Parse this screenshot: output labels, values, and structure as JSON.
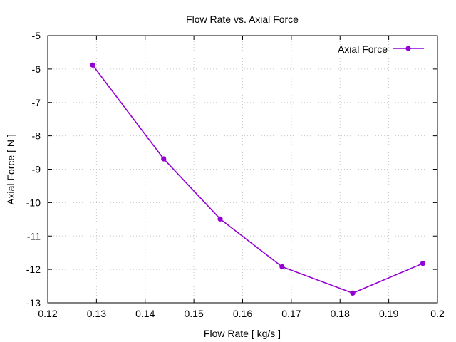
{
  "chart_data": {
    "type": "line",
    "title": "Flow Rate vs. Axial Force",
    "xlabel": "Flow Rate [ kg/s ]",
    "ylabel": "Axial Force [ N ]",
    "xlim": [
      0.12,
      0.2
    ],
    "ylim": [
      -13,
      -5
    ],
    "xticks": [
      "0.12",
      "0.13",
      "0.14",
      "0.15",
      "0.16",
      "0.17",
      "0.18",
      "0.19",
      "0.2"
    ],
    "yticks": [
      "-13",
      "-12",
      "-11",
      "-10",
      "-9",
      "-8",
      "-7",
      "-6",
      "-5"
    ],
    "grid": true,
    "legend_position": "top-right",
    "series": [
      {
        "name": "Axial Force",
        "color": "#9400d3",
        "x": [
          0.1292,
          0.1438,
          0.1554,
          0.1681,
          0.1826,
          0.197
        ],
        "y": [
          -5.88,
          -8.69,
          -10.49,
          -11.92,
          -12.71,
          -11.82
        ]
      }
    ]
  }
}
